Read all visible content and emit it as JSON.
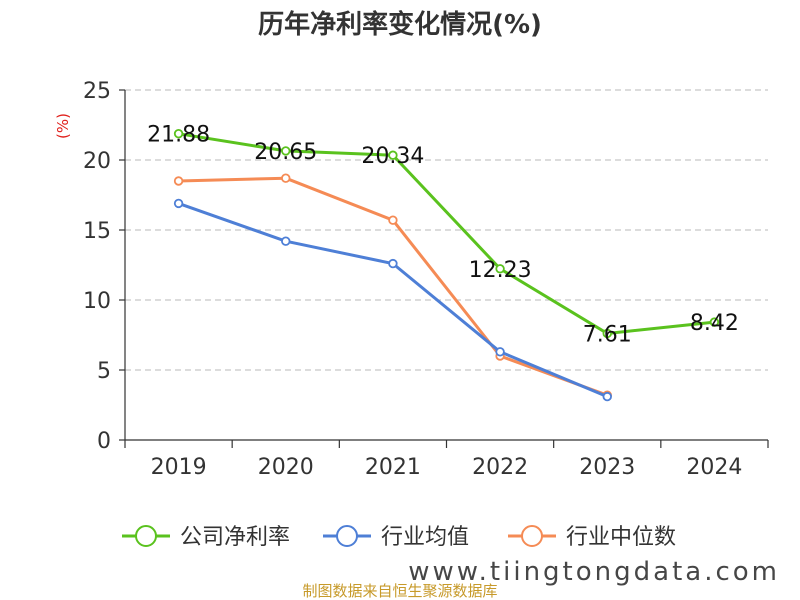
{
  "chart_data": {
    "type": "line",
    "title": "历年净利率变化情况(%)",
    "ylabel": "(%)",
    "categories": [
      "2019",
      "2020",
      "2021",
      "2022",
      "2023",
      "2024"
    ],
    "ylim": [
      0,
      25
    ],
    "yticks": [
      0,
      5,
      10,
      15,
      20,
      25
    ],
    "grid": true,
    "legend_position": "bottom",
    "series": [
      {
        "name": "公司净利率",
        "color": "#5ac21e",
        "values": [
          21.88,
          20.65,
          20.34,
          12.23,
          7.61,
          8.42
        ],
        "labels": [
          "21.88",
          "20.65",
          "20.34",
          "12.23",
          "7.61",
          "8.42"
        ]
      },
      {
        "name": "行业均值",
        "color": "#4e7fd6",
        "values": [
          16.9,
          14.2,
          12.6,
          6.3,
          3.1,
          null
        ]
      },
      {
        "name": "行业中位数",
        "color": "#f58b55",
        "values": [
          18.5,
          18.7,
          15.7,
          6.0,
          3.2,
          null
        ]
      }
    ]
  },
  "source_text": "制图数据来自恒生聚源数据库",
  "watermark_text": "www.tiingtongdata.com"
}
